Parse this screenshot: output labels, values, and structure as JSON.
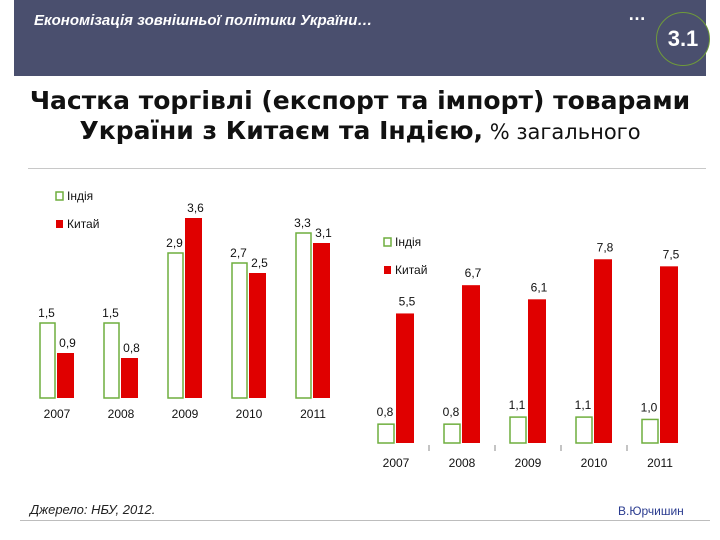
{
  "header": {
    "title": "Економізація зовнішньої політики України…",
    "dots": "…",
    "slide_number": "3.1"
  },
  "slide_title": {
    "main": "Частка торгівлі (експорт та імпорт) товарами України з Китаєм та Індією,",
    "suffix": " % загального"
  },
  "footer": {
    "source": "Джерело: НБУ, 2012.",
    "author": "В.Юрчишин"
  },
  "colors": {
    "header_bg": "#4a4f6e",
    "china": "#e00000",
    "india_fill": "#ffffff",
    "india_border": "#6fae3e"
  },
  "chart_data": [
    {
      "type": "bar",
      "categories": [
        "2007",
        "2008",
        "2009",
        "2010",
        "2011"
      ],
      "series": [
        {
          "name": "Індія",
          "values": [
            1.5,
            1.5,
            2.9,
            2.7,
            3.3
          ]
        },
        {
          "name": "Китай",
          "values": [
            0.9,
            0.8,
            3.6,
            2.5,
            3.1
          ]
        }
      ],
      "labels": {
        "Індія": [
          "1,5",
          "1,5",
          "2,9",
          "2,7",
          "3,3"
        ],
        "Китай": [
          "0,9",
          "0,8",
          "3,6",
          "2,5",
          "3,1"
        ]
      },
      "ylim": [
        0,
        4.0
      ],
      "legend": "top-left"
    },
    {
      "type": "bar",
      "categories": [
        "2007",
        "2008",
        "2009",
        "2010",
        "2011"
      ],
      "series": [
        {
          "name": "Індія",
          "values": [
            0.8,
            0.8,
            1.1,
            1.1,
            1.0
          ]
        },
        {
          "name": "Китай",
          "values": [
            5.5,
            6.7,
            6.1,
            7.8,
            7.5
          ]
        }
      ],
      "labels": {
        "Індія": [
          "0,8",
          "0,8",
          "1,1",
          "1,1",
          "1,0"
        ],
        "Китай": [
          "5,5",
          "6,7",
          "6,1",
          "7,8",
          "7,5"
        ]
      },
      "ylim": [
        0,
        9.0
      ],
      "legend": "top-left"
    }
  ]
}
